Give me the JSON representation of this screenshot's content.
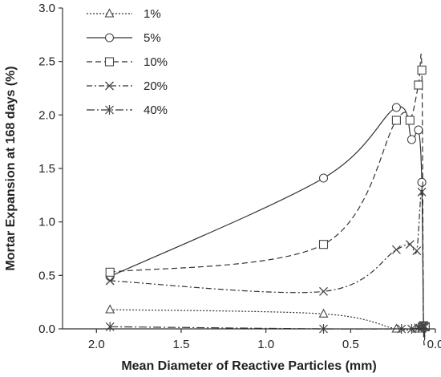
{
  "chart_data": {
    "type": "line",
    "title": "",
    "xlabel": "Mean Diameter of Reactive Particles (mm)",
    "ylabel": "Mortar Expansion at 168 days (%)",
    "xlim": [
      2.2,
      0.0
    ],
    "ylim": [
      0.0,
      3.0
    ],
    "x_reversed": true,
    "x_ticks": [
      "2.0",
      "1.5",
      "1.0",
      "0.5",
      "0.0"
    ],
    "x_tick_values": [
      2.0,
      1.5,
      1.0,
      0.5,
      0.0
    ],
    "y_ticks": [
      "0.0",
      "0.5",
      "1.0",
      "1.5",
      "2.0",
      "2.5",
      "3.0"
    ],
    "y_tick_values": [
      0.0,
      0.5,
      1.0,
      1.5,
      2.0,
      2.5,
      3.0
    ],
    "grid": false,
    "legend_position": "top-left",
    "series": [
      {
        "name": "1%",
        "marker": "triangle",
        "line_style": "dotted",
        "points": [
          [
            1.92,
            0.18
          ],
          [
            0.66,
            0.14
          ],
          [
            0.23,
            0.0
          ],
          [
            0.11,
            0.0
          ],
          [
            0.08,
            0.0
          ],
          [
            0.07,
            0.02
          ],
          [
            0.06,
            0.02
          ]
        ]
      },
      {
        "name": "5%",
        "marker": "circle",
        "line_style": "solid",
        "points": [
          [
            1.92,
            0.49
          ],
          [
            0.66,
            1.41
          ],
          [
            0.23,
            2.07
          ],
          [
            0.14,
            1.77
          ],
          [
            0.1,
            1.86
          ],
          [
            0.08,
            1.37
          ],
          [
            0.07,
            0.03
          ],
          [
            0.06,
            0.02
          ]
        ]
      },
      {
        "name": "10%",
        "marker": "square",
        "line_style": "dashed",
        "points": [
          [
            1.92,
            0.53
          ],
          [
            0.66,
            0.79
          ],
          [
            0.23,
            1.95
          ],
          [
            0.15,
            1.95
          ],
          [
            0.1,
            2.28
          ],
          [
            0.08,
            2.42
          ],
          [
            0.07,
            0.03
          ],
          [
            0.06,
            0.02
          ]
        ]
      },
      {
        "name": "20%",
        "marker": "x",
        "line_style": "dash-dot",
        "points": [
          [
            1.92,
            0.45
          ],
          [
            0.66,
            0.35
          ],
          [
            0.23,
            0.74
          ],
          [
            0.15,
            0.79
          ],
          [
            0.11,
            0.73
          ],
          [
            0.08,
            1.28
          ],
          [
            0.07,
            0.03
          ],
          [
            0.06,
            0.02
          ]
        ]
      },
      {
        "name": "40%",
        "marker": "asterisk",
        "line_style": "long-dash-dot",
        "points": [
          [
            1.92,
            0.02
          ],
          [
            0.66,
            0.0
          ],
          [
            0.2,
            0.0
          ],
          [
            0.14,
            0.0
          ],
          [
            0.1,
            0.01
          ],
          [
            0.08,
            0.02
          ],
          [
            0.07,
            0.02
          ]
        ]
      }
    ]
  }
}
